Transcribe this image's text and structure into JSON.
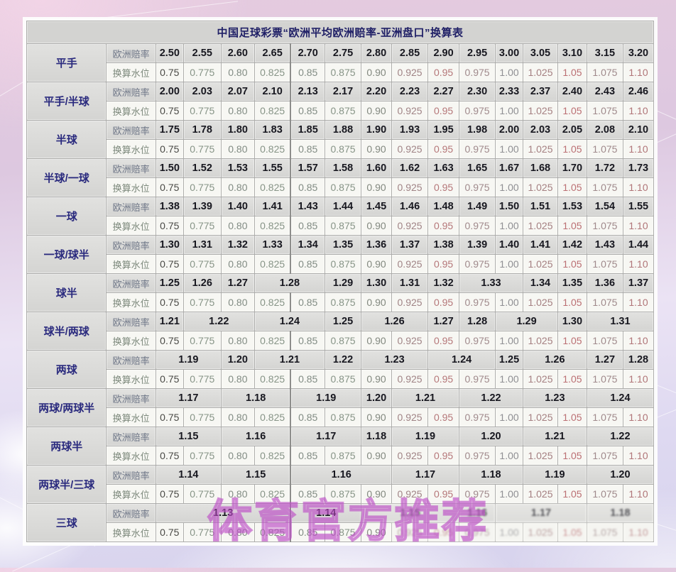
{
  "title": "中国足球彩票“欧洲平均欧洲赔率-亚洲盘口”换算表",
  "watermark": "体育官方推荐",
  "row_labels": {
    "odds": "欧洲赔率",
    "water": "换算水位"
  },
  "water_values": [
    "0.75",
    "0.775",
    "0.80",
    "0.825",
    "0.85",
    "0.875",
    "0.90",
    "0.925",
    "0.95",
    "0.975",
    "1.00",
    "1.025",
    "1.05",
    "1.075",
    "1.10"
  ],
  "colors": {
    "title_text": "#1f1f66",
    "handicap_text": "#2a2a7e",
    "odds_value_text": "#17171f",
    "odds_row_bg": "#d8d8d6",
    "water_row_bg": "#f7f7f3",
    "watermark": "#ba4cc4",
    "water_value_colors": [
      "#4a4a46",
      "#879487",
      "#828c84",
      "#879487",
      "#828c84",
      "#879487",
      "#82887f",
      "#a08486",
      "#b57779",
      "#a08a8c",
      "#8f8f93",
      "#a58082",
      "#bb6f73",
      "#9f898b",
      "#b07578"
    ]
  },
  "groups": [
    {
      "label": "平手",
      "odds": [
        [
          "2.50",
          1
        ],
        [
          "2.55",
          1
        ],
        [
          "2.60",
          1
        ],
        [
          "2.65",
          1
        ],
        [
          "2.70",
          1
        ],
        [
          "2.75",
          1
        ],
        [
          "2.80",
          1
        ],
        [
          "2.85",
          1
        ],
        [
          "2.90",
          1
        ],
        [
          "2.95",
          1
        ],
        [
          "3.00",
          1
        ],
        [
          "3.05",
          1
        ],
        [
          "3.10",
          1
        ],
        [
          "3.15",
          1
        ],
        [
          "3.20",
          1
        ]
      ]
    },
    {
      "label": "平手/半球",
      "odds": [
        [
          "2.00",
          1
        ],
        [
          "2.03",
          1
        ],
        [
          "2.07",
          1
        ],
        [
          "2.10",
          1
        ],
        [
          "2.13",
          1
        ],
        [
          "2.17",
          1
        ],
        [
          "2.20",
          1
        ],
        [
          "2.23",
          1
        ],
        [
          "2.27",
          1
        ],
        [
          "2.30",
          1
        ],
        [
          "2.33",
          1
        ],
        [
          "2.37",
          1
        ],
        [
          "2.40",
          1
        ],
        [
          "2.43",
          1
        ],
        [
          "2.46",
          1
        ]
      ]
    },
    {
      "label": "半球",
      "odds": [
        [
          "1.75",
          1
        ],
        [
          "1.78",
          1
        ],
        [
          "1.80",
          1
        ],
        [
          "1.83",
          1
        ],
        [
          "1.85",
          1
        ],
        [
          "1.88",
          1
        ],
        [
          "1.90",
          1
        ],
        [
          "1.93",
          1
        ],
        [
          "1.95",
          1
        ],
        [
          "1.98",
          1
        ],
        [
          "2.00",
          1
        ],
        [
          "2.03",
          1
        ],
        [
          "2.05",
          1
        ],
        [
          "2.08",
          1
        ],
        [
          "2.10",
          1
        ]
      ]
    },
    {
      "label": "半球/一球",
      "odds": [
        [
          "1.50",
          1
        ],
        [
          "1.52",
          1
        ],
        [
          "1.53",
          1
        ],
        [
          "1.55",
          1
        ],
        [
          "1.57",
          1
        ],
        [
          "1.58",
          1
        ],
        [
          "1.60",
          1
        ],
        [
          "1.62",
          1
        ],
        [
          "1.63",
          1
        ],
        [
          "1.65",
          1
        ],
        [
          "1.67",
          1
        ],
        [
          "1.68",
          1
        ],
        [
          "1.70",
          1
        ],
        [
          "1.72",
          1
        ],
        [
          "1.73",
          1
        ]
      ]
    },
    {
      "label": "一球",
      "odds": [
        [
          "1.38",
          1
        ],
        [
          "1.39",
          1
        ],
        [
          "1.40",
          1
        ],
        [
          "1.41",
          1
        ],
        [
          "1.43",
          1
        ],
        [
          "1.44",
          1
        ],
        [
          "1.45",
          1
        ],
        [
          "1.46",
          1
        ],
        [
          "1.48",
          1
        ],
        [
          "1.49",
          1
        ],
        [
          "1.50",
          1
        ],
        [
          "1.51",
          1
        ],
        [
          "1.53",
          1
        ],
        [
          "1.54",
          1
        ],
        [
          "1.55",
          1
        ]
      ]
    },
    {
      "label": "一球/球半",
      "odds": [
        [
          "1.30",
          1
        ],
        [
          "1.31",
          1
        ],
        [
          "1.32",
          1
        ],
        [
          "1.33",
          1
        ],
        [
          "1.34",
          1
        ],
        [
          "1.35",
          1
        ],
        [
          "1.36",
          1
        ],
        [
          "1.37",
          1
        ],
        [
          "1.38",
          1
        ],
        [
          "1.39",
          1
        ],
        [
          "1.40",
          1
        ],
        [
          "1.41",
          1
        ],
        [
          "1.42",
          1
        ],
        [
          "1.43",
          1
        ],
        [
          "1.44",
          1
        ]
      ]
    },
    {
      "label": "球半",
      "odds": [
        [
          "1.25",
          1
        ],
        [
          "1.26",
          1
        ],
        [
          "1.27",
          1
        ],
        [
          "1.28",
          2
        ],
        [
          "1.29",
          1
        ],
        [
          "1.30",
          1
        ],
        [
          "1.31",
          1
        ],
        [
          "1.32",
          1
        ],
        [
          "1.33",
          2
        ],
        [
          "1.34",
          1
        ],
        [
          "1.35",
          1
        ],
        [
          "1.36",
          1
        ],
        [
          "1.37",
          1
        ]
      ]
    },
    {
      "label": "球半/两球",
      "odds": [
        [
          "1.21",
          1
        ],
        [
          "1.22",
          2
        ],
        [
          "1.24",
          2
        ],
        [
          "1.25",
          1
        ],
        [
          "1.26",
          2
        ],
        [
          "1.27",
          1
        ],
        [
          "1.28",
          1
        ],
        [
          "1.29",
          2
        ],
        [
          "1.30",
          1
        ],
        [
          "1.31",
          2
        ]
      ]
    },
    {
      "label": "两球",
      "odds": [
        [
          "1.19",
          2
        ],
        [
          "1.20",
          1
        ],
        [
          "1.21",
          2
        ],
        [
          "1.22",
          1
        ],
        [
          "1.23",
          2
        ],
        [
          "1.24",
          2
        ],
        [
          "1.25",
          1
        ],
        [
          "1.26",
          2
        ],
        [
          "1.27",
          1
        ],
        [
          "1.28",
          1
        ]
      ]
    },
    {
      "label": "两球/两球半",
      "odds": [
        [
          "1.17",
          2
        ],
        [
          "1.18",
          2
        ],
        [
          "1.19",
          2
        ],
        [
          "1.20",
          1
        ],
        [
          "1.21",
          2
        ],
        [
          "1.22",
          2
        ],
        [
          "1.23",
          2
        ],
        [
          "1.24",
          2
        ]
      ]
    },
    {
      "label": "两球半",
      "odds": [
        [
          "1.15",
          2
        ],
        [
          "1.16",
          2
        ],
        [
          "1.17",
          2
        ],
        [
          "1.18",
          1
        ],
        [
          "1.19",
          2
        ],
        [
          "1.20",
          2
        ],
        [
          "1.21",
          2
        ],
        [
          "1.22",
          2
        ]
      ]
    },
    {
      "label": "两球半/三球",
      "odds": [
        [
          "1.14",
          2
        ],
        [
          "1.15",
          2
        ],
        [
          "1.16",
          3
        ],
        [
          "1.17",
          2
        ],
        [
          "1.18",
          2
        ],
        [
          "1.19",
          2
        ],
        [
          "1.20",
          2
        ]
      ]
    },
    {
      "label": "三球",
      "odds": [
        [
          "1.13",
          4
        ],
        [
          "1.14",
          2
        ],
        [
          "1.15",
          3
        ],
        [
          "1.16",
          1
        ],
        [
          "1.17",
          3
        ],
        [
          "1.18",
          2
        ]
      ],
      "smudge": {
        "odds_from": 7,
        "water_from": 8
      }
    }
  ]
}
